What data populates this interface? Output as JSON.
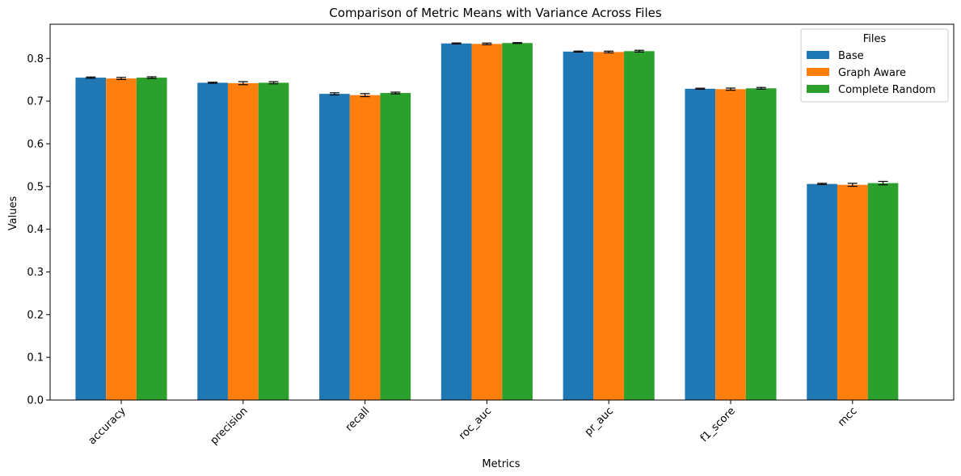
{
  "chart_data": {
    "type": "bar",
    "title": "Comparison of Metric Means with Variance Across Files",
    "xlabel": "Metrics",
    "ylabel": "Values",
    "ylim": [
      0,
      0.88
    ],
    "yticks": [
      "0.0",
      "0.1",
      "0.2",
      "0.3",
      "0.4",
      "0.5",
      "0.6",
      "0.7",
      "0.8"
    ],
    "categories": [
      "accuracy",
      "precision",
      "recall",
      "roc_auc",
      "pr_auc",
      "f1_score",
      "mcc"
    ],
    "legend_title": "Files",
    "legend_position": "top-right",
    "grid": false,
    "series": [
      {
        "name": "Base",
        "color": "#1f77b4",
        "values": [
          0.755,
          0.743,
          0.717,
          0.835,
          0.816,
          0.729,
          0.506
        ],
        "errors": [
          0.0015,
          0.0012,
          0.0025,
          0.0012,
          0.0012,
          0.0012,
          0.0015
        ]
      },
      {
        "name": "Graph Aware",
        "color": "#ff7f0e",
        "values": [
          0.753,
          0.742,
          0.714,
          0.834,
          0.815,
          0.728,
          0.504
        ],
        "errors": [
          0.0025,
          0.0035,
          0.0035,
          0.002,
          0.002,
          0.0025,
          0.0035
        ]
      },
      {
        "name": "Complete Random",
        "color": "#2ca02c",
        "values": [
          0.755,
          0.743,
          0.719,
          0.836,
          0.817,
          0.73,
          0.508
        ],
        "errors": [
          0.002,
          0.0025,
          0.002,
          0.001,
          0.002,
          0.002,
          0.004
        ]
      }
    ]
  }
}
